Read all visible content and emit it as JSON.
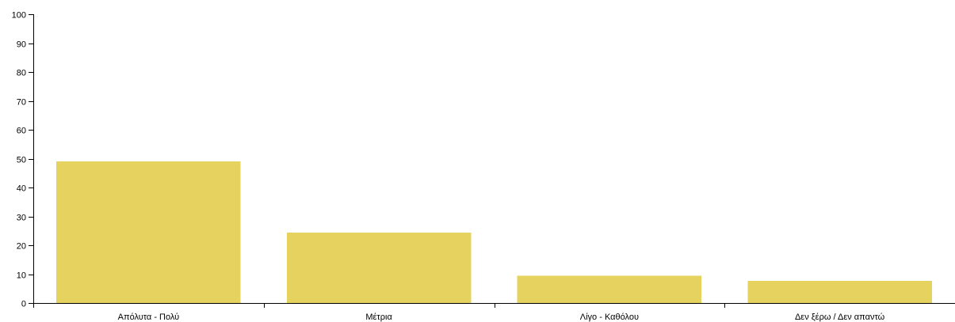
{
  "chart_data": {
    "type": "bar",
    "title": "",
    "xlabel": "",
    "ylabel": "",
    "categories": [
      "Απόλυτα - Πολύ",
      "Μέτρια",
      "Λίγο - Καθόλου",
      "Δεν ξέρω / Δεν απαντώ"
    ],
    "values": [
      49,
      24.4,
      9.4,
      7.7
    ],
    "ylim": [
      0,
      100
    ],
    "yticks": [
      0,
      10,
      20,
      30,
      40,
      50,
      60,
      70,
      80,
      90,
      100
    ],
    "bar_color": "#e6d35f",
    "grid": false,
    "legend": "none"
  }
}
